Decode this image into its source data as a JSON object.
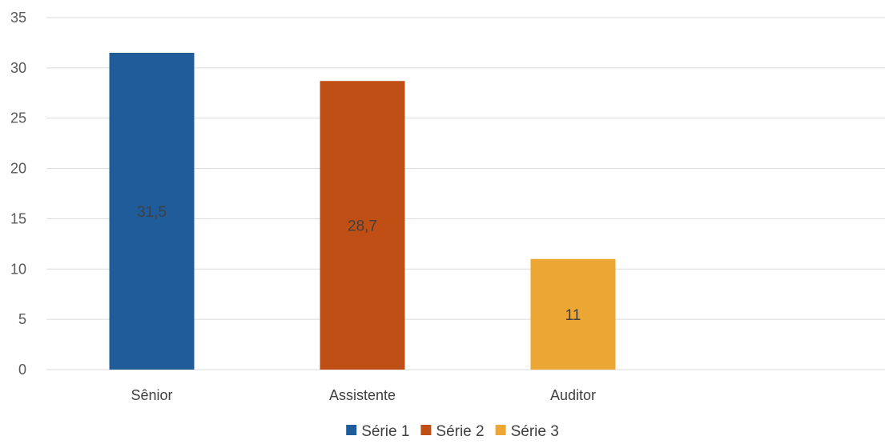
{
  "chart_data": {
    "type": "bar",
    "categories": [
      "Sênior",
      "Assistente",
      "Auditor"
    ],
    "series": [
      {
        "name": "Série 1",
        "color": "#1f5c99",
        "values": [
          31.5,
          null,
          null
        ],
        "data_labels": [
          "31,5",
          "",
          ""
        ]
      },
      {
        "name": "Série 2",
        "color": "#c04f15",
        "values": [
          null,
          28.7,
          null
        ],
        "data_labels": [
          "",
          "28,7",
          ""
        ]
      },
      {
        "name": "Série 3",
        "color": "#eba633",
        "values": [
          null,
          null,
          11
        ],
        "data_labels": [
          "",
          "",
          "11"
        ]
      }
    ],
    "y_ticks": [
      "0",
      "5",
      "10",
      "15",
      "20",
      "25",
      "30",
      "35"
    ],
    "ylim": [
      0,
      35
    ],
    "grid": true,
    "legend_position": "bottom",
    "data_label_position": "center"
  }
}
